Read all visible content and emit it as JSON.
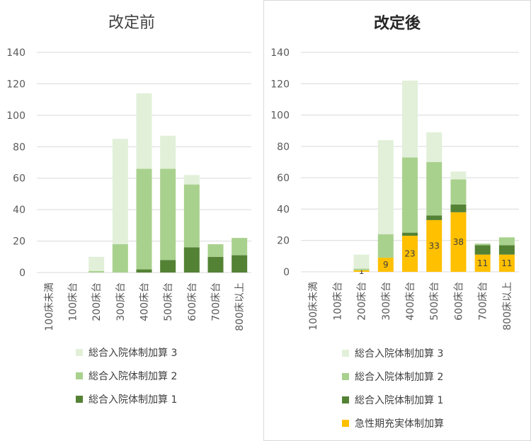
{
  "colors": {
    "kasan3": "#e2f0d9",
    "kasan2": "#a9d18e",
    "kasan1": "#548235",
    "kyusei": "#ffc000",
    "grid": "#d9d9d9",
    "text": "#595959"
  },
  "chart_data": [
    {
      "type": "bar",
      "stacked": true,
      "title": "改定前",
      "categories": [
        "100床未満",
        "100床台",
        "200床台",
        "300床台",
        "400床台",
        "500床台",
        "600床台",
        "700床台",
        "800床以上"
      ],
      "ylim": [
        0,
        140
      ],
      "yticks": [
        0,
        20,
        40,
        60,
        80,
        100,
        120,
        140
      ],
      "grid": true,
      "legend_position": "bottom",
      "series": [
        {
          "name": "総合入院体制加算 1",
          "color_key": "kasan1",
          "values": [
            0,
            0,
            0,
            0,
            2,
            8,
            16,
            10,
            11
          ]
        },
        {
          "name": "総合入院体制加算 2",
          "color_key": "kasan2",
          "values": [
            0,
            0,
            1,
            18,
            64,
            58,
            40,
            8,
            11
          ]
        },
        {
          "name": "総合入院体制加算 3",
          "color_key": "kasan3",
          "values": [
            0,
            0,
            9,
            67,
            48,
            21,
            6,
            0,
            0
          ]
        }
      ],
      "legend_order": [
        "総合入院体制加算 3",
        "総合入院体制加算 2",
        "総合入院体制加算 1"
      ]
    },
    {
      "type": "bar",
      "stacked": true,
      "title": "改定後",
      "categories": [
        "100床未満",
        "100床台",
        "200床台",
        "300床台",
        "400床台",
        "500床台",
        "600床台",
        "700床台",
        "800床以上"
      ],
      "ylim": [
        0,
        140
      ],
      "yticks": [
        0,
        20,
        40,
        60,
        80,
        100,
        120,
        140
      ],
      "grid": true,
      "legend_position": "bottom",
      "series": [
        {
          "name": "急性期充実体制加算",
          "color_key": "kyusei",
          "values": [
            0,
            0,
            1,
            9,
            23,
            33,
            38,
            11,
            11
          ],
          "labels": [
            "",
            "",
            "1",
            "9",
            "23",
            "33",
            "38",
            "11",
            "11"
          ]
        },
        {
          "name": "総合入院体制加算 1",
          "color_key": "kasan1",
          "values": [
            0,
            0,
            0,
            0,
            2,
            3,
            5,
            6,
            6
          ]
        },
        {
          "name": "総合入院体制加算 2",
          "color_key": "kasan2",
          "values": [
            0,
            0,
            1,
            15,
            48,
            34,
            16,
            1,
            5
          ]
        },
        {
          "name": "総合入院体制加算 3",
          "color_key": "kasan3",
          "values": [
            0,
            0,
            9,
            60,
            49,
            19,
            5,
            0,
            0
          ]
        }
      ],
      "legend_order": [
        "総合入院体制加算 3",
        "総合入院体制加算 2",
        "総合入院体制加算 1",
        "急性期充実体制加算"
      ]
    }
  ]
}
